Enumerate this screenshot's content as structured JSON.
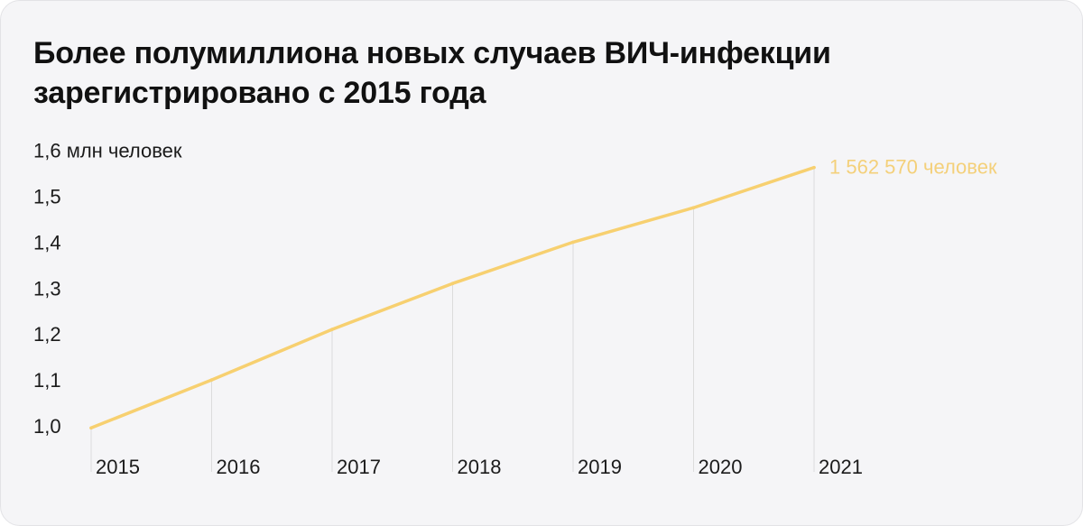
{
  "title": "Более полумиллиона новых случаев ВИЧ-инфекции зарегистрировано с 2015 года",
  "colors": {
    "line": "#f7d070",
    "end_label": "#f4d07a",
    "gridline": "#dcdcdc",
    "text": "#1b1b1b",
    "background": "#f5f5f7"
  },
  "chart_data": {
    "type": "line",
    "title": "Более полумиллиона новых случаев ВИЧ-инфекции зарегистрировано с 2015 года",
    "xlabel": "",
    "ylabel": "",
    "y_unit_label": "1,6 млн человек",
    "categories": [
      "2015",
      "2016",
      "2017",
      "2018",
      "2019",
      "2020",
      "2021"
    ],
    "x": [
      2015,
      2016,
      2017,
      2018,
      2019,
      2020,
      2021
    ],
    "y": [
      0.9955,
      1.1,
      1.21,
      1.31,
      1.4,
      1.475,
      1.5626
    ],
    "ylim": [
      1.0,
      1.6
    ],
    "y_ticks": [
      1.0,
      1.1,
      1.2,
      1.3,
      1.4,
      1.5,
      1.6
    ],
    "y_tick_labels": [
      "1,0",
      "1,1",
      "1,2",
      "1,3",
      "1,4",
      "1,5",
      "1,6 млн человек"
    ],
    "end_annotation": "1 562 570 человек",
    "grid": "vertical drop lines from each point",
    "legend": "none"
  }
}
